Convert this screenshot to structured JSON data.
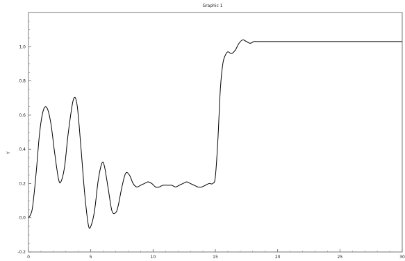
{
  "chart_data": {
    "type": "line",
    "title": "Graphic 1",
    "xlabel": "",
    "ylabel": "Y",
    "xlim": [
      0,
      30
    ],
    "ylim": [
      -0.2,
      1.2
    ],
    "x_ticks": [
      "0",
      "5",
      "10",
      "15",
      "20",
      "25",
      "30"
    ],
    "y_ticks": [
      "-0.2",
      "0.0",
      "0.2",
      "0.4",
      "0.6",
      "0.8",
      "1.0"
    ],
    "grid": false,
    "line_color": "#000000",
    "series": [
      {
        "x": [
          0,
          0.3,
          0.6,
          0.9,
          1.2,
          1.5,
          1.8,
          2.1,
          2.4,
          2.6,
          2.9,
          3.2,
          3.6,
          3.9,
          4.2,
          4.5,
          4.8,
          5.0,
          5.3,
          5.6,
          5.9,
          6.1,
          6.4,
          6.7,
          7.0,
          7.2,
          7.5,
          7.8,
          8.1,
          8.4,
          8.7,
          9.0,
          9.3,
          9.6,
          9.9,
          10.2,
          10.5,
          10.8,
          11.2,
          11.5,
          11.8,
          12.1,
          12.4,
          12.7,
          13.0,
          13.3,
          13.6,
          13.9,
          14.2,
          14.5,
          14.8,
          15.0,
          15.2,
          15.4,
          15.6,
          15.8,
          16.0,
          16.3,
          16.6,
          16.9,
          17.2,
          17.5,
          17.8,
          18.1,
          18.4,
          18.7,
          19.0,
          19.3,
          19.6,
          20.0,
          21.0,
          22.0,
          23.0,
          24.0,
          25.0,
          26.0,
          27.0,
          28.0,
          29.0,
          30.0
        ],
        "y": [
          0.0,
          0.05,
          0.25,
          0.5,
          0.63,
          0.64,
          0.55,
          0.38,
          0.23,
          0.21,
          0.3,
          0.5,
          0.69,
          0.66,
          0.42,
          0.15,
          -0.04,
          -0.05,
          0.04,
          0.22,
          0.32,
          0.3,
          0.17,
          0.04,
          0.03,
          0.07,
          0.18,
          0.26,
          0.25,
          0.2,
          0.18,
          0.19,
          0.2,
          0.21,
          0.2,
          0.18,
          0.18,
          0.19,
          0.19,
          0.19,
          0.18,
          0.19,
          0.2,
          0.21,
          0.2,
          0.19,
          0.18,
          0.18,
          0.19,
          0.2,
          0.2,
          0.24,
          0.45,
          0.75,
          0.9,
          0.95,
          0.97,
          0.96,
          0.98,
          1.02,
          1.04,
          1.03,
          1.02,
          1.03,
          1.03,
          1.03,
          1.03,
          1.03,
          1.03,
          1.03,
          1.03,
          1.03,
          1.03,
          1.03,
          1.03,
          1.03,
          1.03,
          1.03,
          1.03,
          1.03
        ]
      }
    ]
  }
}
